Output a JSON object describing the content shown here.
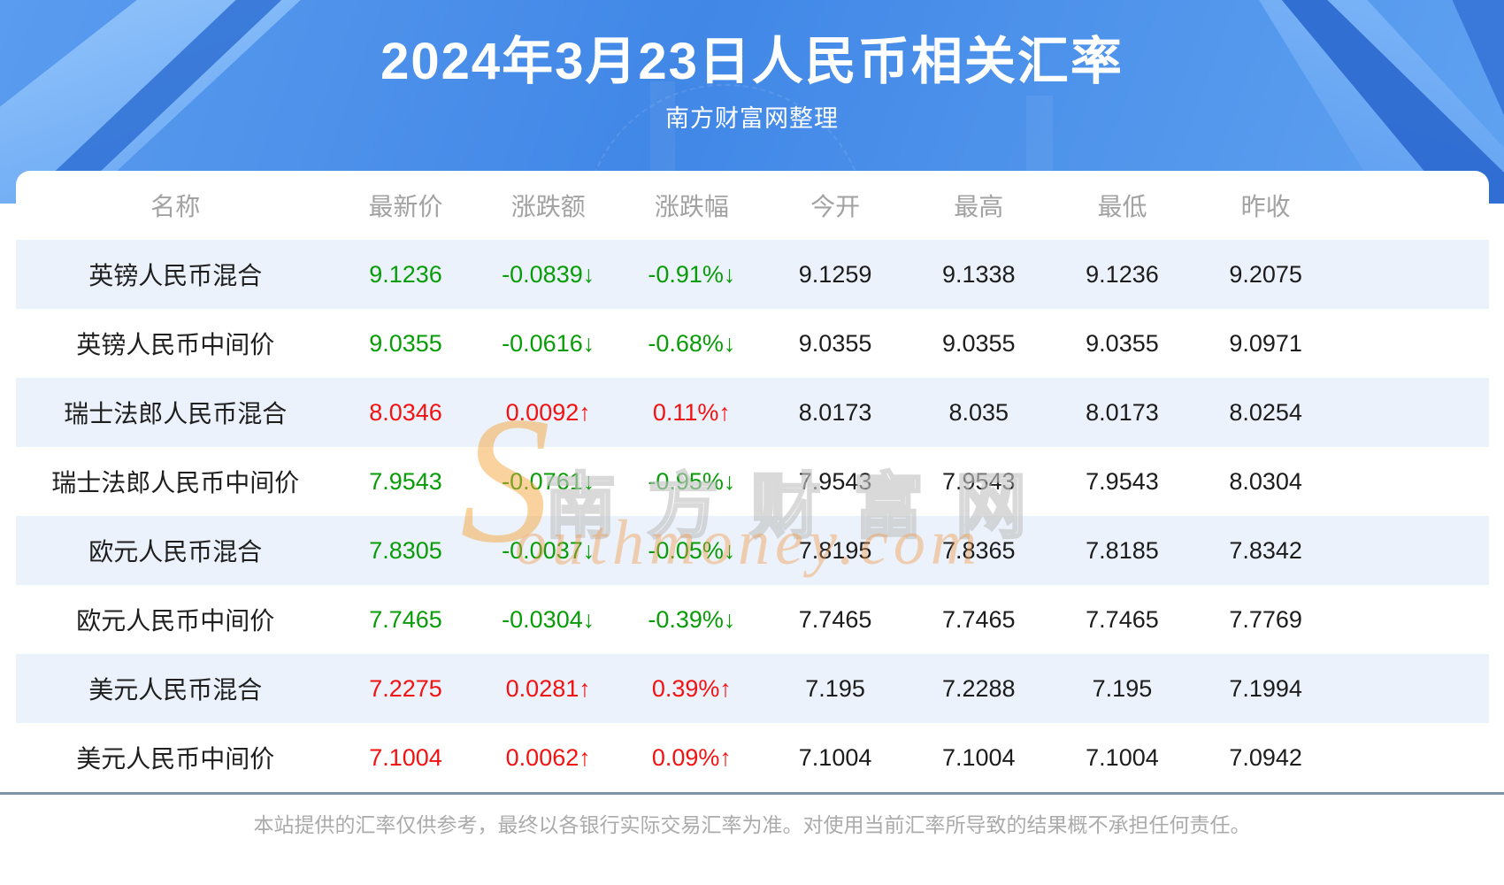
{
  "header": {
    "title": "2024年3月23日人民币相关汇率",
    "subtitle": "南方财富网整理"
  },
  "watermark": {
    "brand_cn": "南方财富网",
    "brand_en_initial": "S",
    "brand_en_rest": "outhmoney.com"
  },
  "colors": {
    "up": "#f31212",
    "down": "#089d08"
  },
  "arrows": {
    "up": "↑",
    "down": "↓"
  },
  "table": {
    "columns": [
      "名称",
      "最新价",
      "涨跌额",
      "涨跌幅",
      "今开",
      "最高",
      "最低",
      "昨收"
    ],
    "rows": [
      {
        "name": "英镑人民币混合",
        "latest": "9.1236",
        "change": "-0.0839",
        "change_pct": "-0.91%",
        "open": "9.1259",
        "high": "9.1338",
        "low": "9.1236",
        "prev_close": "9.2075",
        "direction": "down"
      },
      {
        "name": "英镑人民币中间价",
        "latest": "9.0355",
        "change": "-0.0616",
        "change_pct": "-0.68%",
        "open": "9.0355",
        "high": "9.0355",
        "low": "9.0355",
        "prev_close": "9.0971",
        "direction": "down"
      },
      {
        "name": "瑞士法郎人民币混合",
        "latest": "8.0346",
        "change": "0.0092",
        "change_pct": "0.11%",
        "open": "8.0173",
        "high": "8.035",
        "low": "8.0173",
        "prev_close": "8.0254",
        "direction": "up"
      },
      {
        "name": "瑞士法郎人民币中间价",
        "latest": "7.9543",
        "change": "-0.0761",
        "change_pct": "-0.95%",
        "open": "7.9543",
        "high": "7.9543",
        "low": "7.9543",
        "prev_close": "8.0304",
        "direction": "down"
      },
      {
        "name": "欧元人民币混合",
        "latest": "7.8305",
        "change": "-0.0037",
        "change_pct": "-0.05%",
        "open": "7.8195",
        "high": "7.8365",
        "low": "7.8185",
        "prev_close": "7.8342",
        "direction": "down"
      },
      {
        "name": "欧元人民币中间价",
        "latest": "7.7465",
        "change": "-0.0304",
        "change_pct": "-0.39%",
        "open": "7.7465",
        "high": "7.7465",
        "low": "7.7465",
        "prev_close": "7.7769",
        "direction": "down"
      },
      {
        "name": "美元人民币混合",
        "latest": "7.2275",
        "change": "0.0281",
        "change_pct": "0.39%",
        "open": "7.195",
        "high": "7.2288",
        "low": "7.195",
        "prev_close": "7.1994",
        "direction": "up"
      },
      {
        "name": "美元人民币中间价",
        "latest": "7.1004",
        "change": "0.0062",
        "change_pct": "0.09%",
        "open": "7.1004",
        "high": "7.1004",
        "low": "7.1004",
        "prev_close": "7.0942",
        "direction": "up"
      }
    ]
  },
  "footer": {
    "disclaimer": "本站提供的汇率仅供参考，最终以各银行实际交易汇率为准。对使用当前汇率所导致的结果概不承担任何责任。"
  }
}
